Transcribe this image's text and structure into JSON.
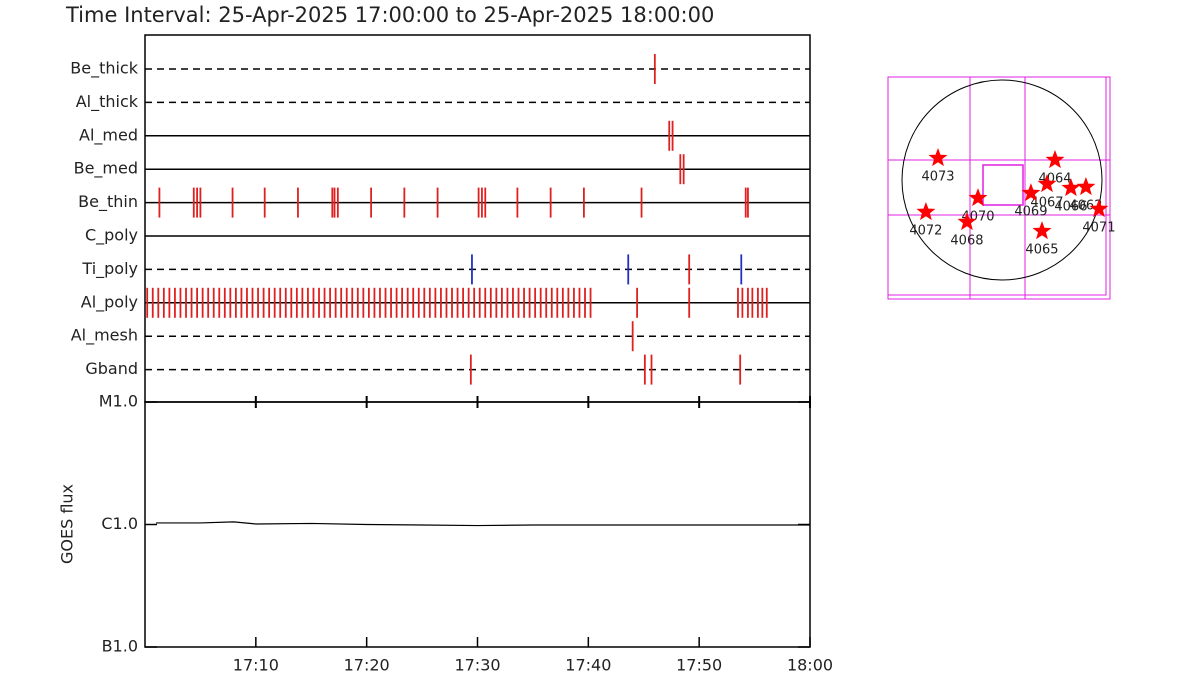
{
  "chart_data": [
    {
      "type": "timeline",
      "title": "Time Interval: 25-Apr-2025 17:00:00 to 25-Apr-2025 18:00:00",
      "xlim": [
        0,
        60
      ],
      "xticks": [
        {
          "value": 10,
          "label": "17:10"
        },
        {
          "value": 20,
          "label": "17:20"
        },
        {
          "value": 30,
          "label": "17:30"
        },
        {
          "value": 40,
          "label": "17:40"
        },
        {
          "value": 50,
          "label": "17:50"
        },
        {
          "value": 60,
          "label": "18:00"
        }
      ],
      "rows": [
        {
          "name": "Be_thick",
          "line": "dashed",
          "color": "#e02020",
          "times": [
            46.0
          ]
        },
        {
          "name": "Al_thick",
          "line": "dashed",
          "color": "#e02020",
          "times": []
        },
        {
          "name": "Al_med",
          "line": "solid",
          "color": "#e02020",
          "times": [
            47.3,
            47.6
          ]
        },
        {
          "name": "Be_med",
          "line": "solid",
          "color": "#e02020",
          "times": [
            48.3,
            48.6
          ]
        },
        {
          "name": "Be_thin",
          "line": "solid",
          "color": "#e02020",
          "times": [
            1.3,
            4.4,
            4.7,
            5.0,
            7.9,
            10.8,
            13.8,
            16.9,
            17.1,
            17.4,
            20.4,
            23.4,
            26.4,
            30.1,
            30.4,
            30.7,
            33.6,
            36.6,
            39.6,
            44.8,
            54.2,
            54.4
          ]
        },
        {
          "name": "C_poly",
          "line": "solid",
          "color": "#e02020",
          "times": []
        },
        {
          "name": "Ti_poly",
          "line": "dashed",
          "color": "#e02020",
          "times": [
            29.5,
            43.6,
            49.1,
            53.8
          ],
          "colors": [
            "#2030c0",
            "#2030c0",
            "#e02020",
            "#2030c0"
          ]
        },
        {
          "name": "Al_poly",
          "line": "solid",
          "color": "#e02020",
          "times": [
            0.2,
            0.7,
            1.2,
            1.7,
            2.2,
            2.7,
            3.2,
            3.7,
            4.2,
            4.7,
            5.2,
            5.7,
            6.2,
            6.7,
            7.2,
            7.7,
            8.2,
            8.7,
            9.2,
            9.7,
            10.2,
            10.7,
            11.2,
            11.7,
            12.2,
            12.7,
            13.2,
            13.7,
            14.2,
            14.7,
            15.2,
            15.7,
            16.2,
            16.7,
            17.2,
            17.7,
            18.2,
            18.7,
            19.2,
            19.7,
            20.2,
            20.7,
            21.2,
            21.7,
            22.2,
            22.7,
            23.2,
            23.7,
            24.2,
            24.7,
            25.2,
            25.7,
            26.2,
            26.7,
            27.2,
            27.7,
            28.2,
            28.7,
            29.2,
            29.7,
            30.2,
            30.7,
            31.2,
            31.7,
            32.2,
            32.7,
            33.2,
            33.7,
            34.2,
            34.7,
            35.2,
            35.7,
            36.2,
            36.7,
            37.2,
            37.7,
            38.2,
            38.7,
            39.2,
            39.7,
            40.2,
            44.4,
            49.1,
            53.5,
            53.9,
            54.4,
            54.8,
            55.3,
            55.7,
            56.1
          ]
        },
        {
          "name": "Al_mesh",
          "line": "dashed",
          "color": "#e02020",
          "times": [
            44.0
          ]
        },
        {
          "name": "Gband",
          "line": "dashed",
          "color": "#e02020",
          "times": [
            29.4,
            45.1,
            45.7,
            53.7
          ]
        }
      ]
    },
    {
      "type": "line",
      "y_label": "GOES flux",
      "log_y": true,
      "color": "#000000",
      "xlim": [
        0,
        60
      ],
      "ylim": [
        1e-07,
        1e-05
      ],
      "yticks": [
        {
          "value": 1e-07,
          "label": "B1.0"
        },
        {
          "value": 1e-06,
          "label": "C1.0"
        },
        {
          "value": 1e-05,
          "label": "M1.0"
        }
      ],
      "x": [
        1,
        5,
        8,
        10,
        15,
        20,
        25,
        30,
        35,
        40,
        45,
        50,
        55,
        60
      ],
      "values": [
        1.03e-06,
        1.03e-06,
        1.05e-06,
        1.01e-06,
        1.02e-06,
        1e-06,
        9.9e-07,
        9.8e-07,
        9.9e-07,
        9.9e-07,
        9.9e-07,
        9.9e-07,
        9.9e-07,
        9.9e-07
      ]
    },
    {
      "type": "scatter",
      "color": "#ff0000",
      "xlim": [
        -1094,
        1037
      ],
      "ylim": [
        -1142,
        989
      ],
      "labels": [
        "4073",
        "4064",
        "4067",
        "4069",
        "4066",
        "4062",
        "4070",
        "4072",
        "4068",
        "4065",
        "4071"
      ],
      "x": [
        -614,
        509,
        432,
        278,
        662,
        806,
        -230,
        -730,
        -336,
        384,
        931
      ],
      "values": [
        211,
        192,
        -38,
        -125,
        -77,
        -67,
        -173,
        -307,
        -403,
        -490,
        -278
      ]
    }
  ]
}
